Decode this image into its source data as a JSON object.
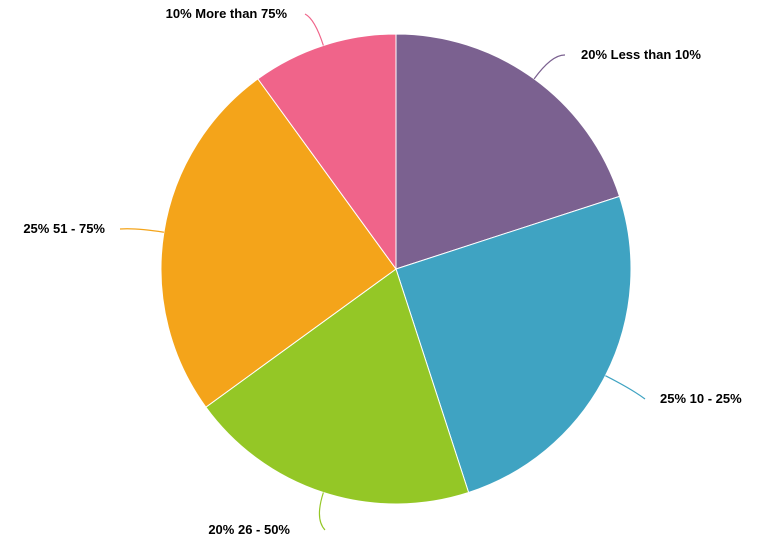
{
  "chart_data": {
    "type": "pie",
    "start_angle_deg": 0,
    "direction": "clockwise",
    "slices": [
      {
        "label": "Less than 10%",
        "value": 20,
        "percent_label": "20%",
        "color": "#7b6190"
      },
      {
        "label": "10 - 25%",
        "value": 25,
        "percent_label": "25%",
        "color": "#3fa3c2"
      },
      {
        "label": "26 - 50%",
        "value": 20,
        "percent_label": "20%",
        "color": "#94c726"
      },
      {
        "label": "51 - 75%",
        "value": 25,
        "percent_label": "25%",
        "color": "#f4a41a"
      },
      {
        "label": "More than 75%",
        "value": 10,
        "percent_label": "10%",
        "color": "#f0648a"
      }
    ],
    "legend": "none",
    "data_labels": "outside"
  }
}
